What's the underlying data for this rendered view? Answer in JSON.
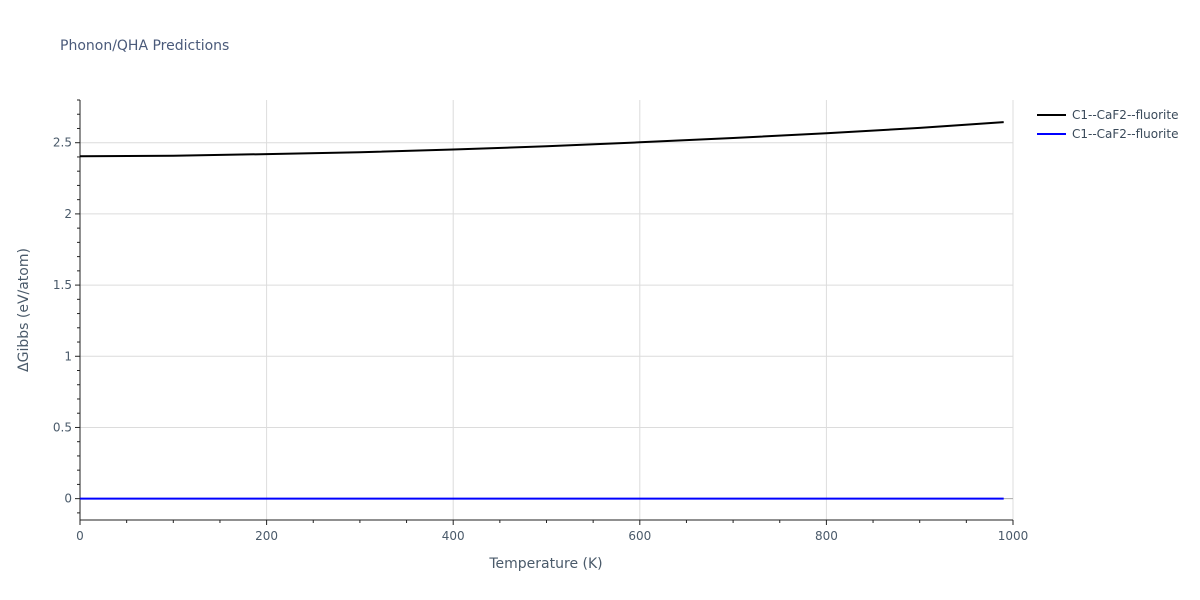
{
  "chart_data": {
    "type": "line",
    "title": "Phonon/QHA Predictions",
    "xlabel": "Temperature (K)",
    "ylabel": "ΔGibbs (eV/atom)",
    "xlim": [
      0,
      1000
    ],
    "ylim": [
      -0.15,
      2.8
    ],
    "x_ticks": [
      0,
      200,
      400,
      600,
      800,
      1000
    ],
    "y_ticks": [
      0,
      0.5,
      1,
      1.5,
      2,
      2.5
    ],
    "x_tick_labels": [
      "0",
      "200",
      "400",
      "600",
      "800",
      "1000"
    ],
    "y_tick_labels": [
      "0",
      "0.5",
      "1",
      "1.5",
      "2",
      "2.5"
    ],
    "grid": true,
    "legend_position": "top-right",
    "series": [
      {
        "name": "C1--CaF2--fluorite",
        "color": "#000000",
        "x": [
          0,
          100,
          200,
          300,
          400,
          500,
          600,
          700,
          800,
          900,
          990
        ],
        "y": [
          2.405,
          2.408,
          2.42,
          2.433,
          2.452,
          2.475,
          2.503,
          2.533,
          2.566,
          2.604,
          2.645
        ]
      },
      {
        "name": "C1--CaF2--fluorite",
        "color": "#0000ff",
        "x": [
          0,
          990
        ],
        "y": [
          0,
          0
        ]
      }
    ]
  }
}
